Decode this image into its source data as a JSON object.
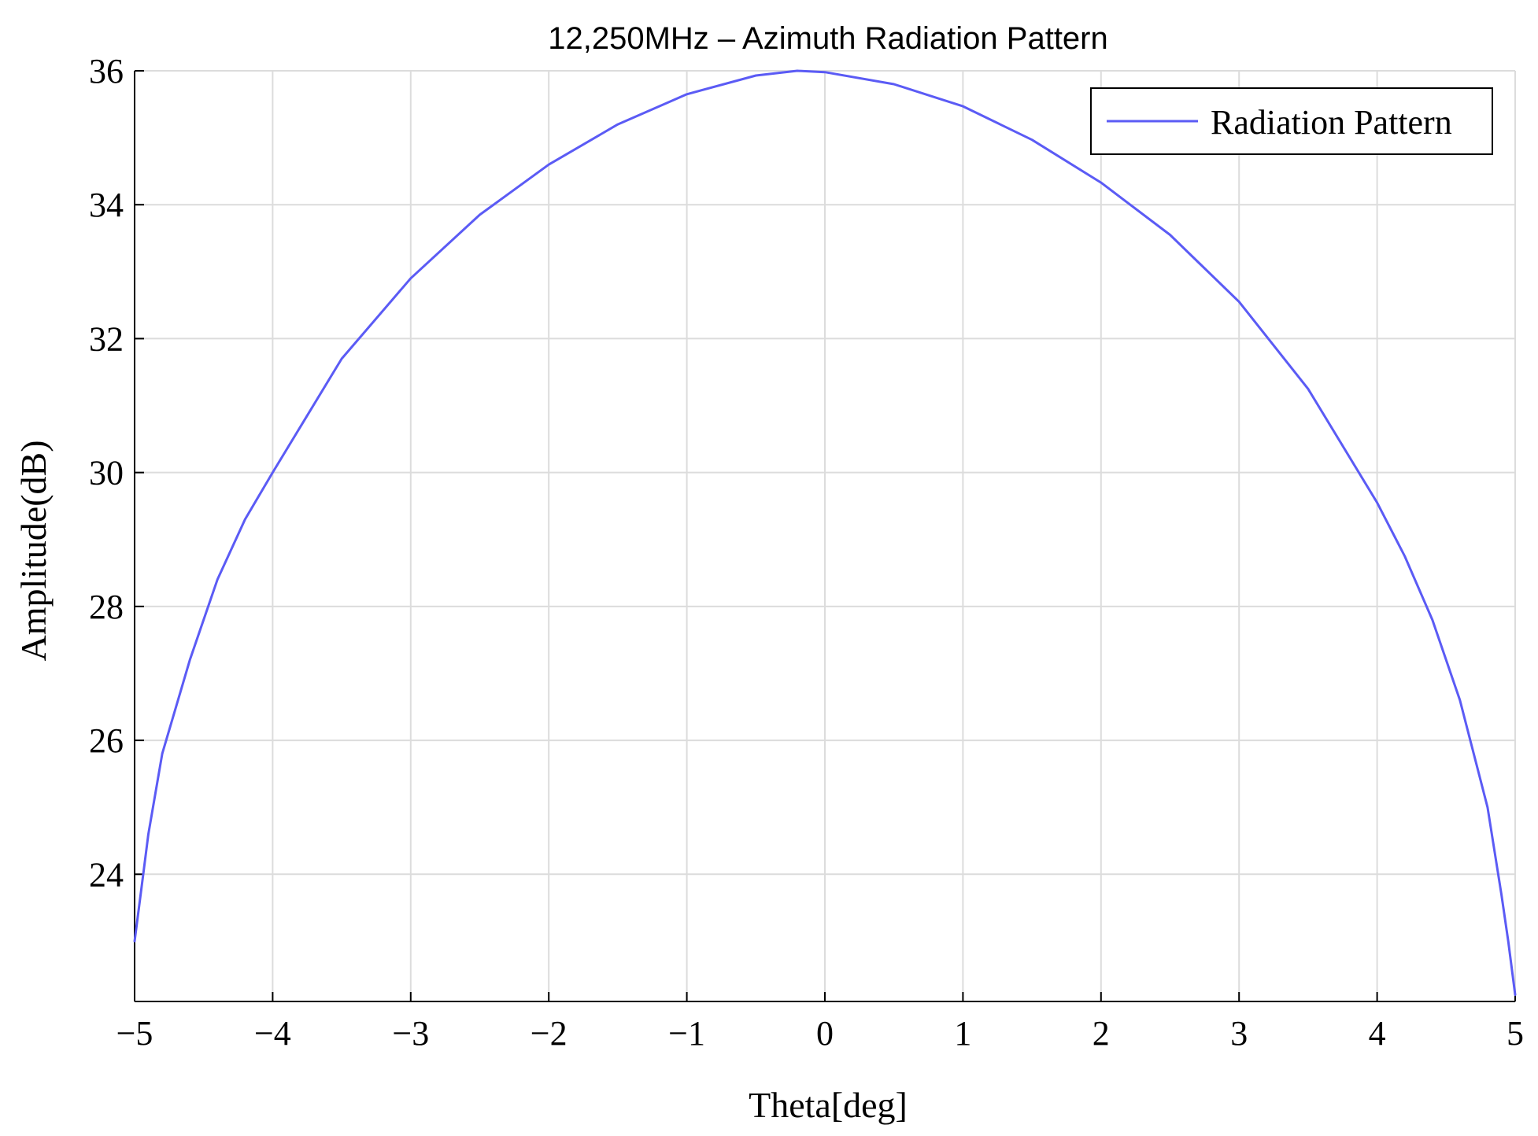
{
  "chart_data": {
    "type": "line",
    "title": "12,250MHz – Azimuth Radiation Pattern",
    "xlabel": "Theta[deg]",
    "ylabel": "Amplitude(dB)",
    "xlim": [
      -5,
      5
    ],
    "ylim": [
      22.1,
      36
    ],
    "xticks": [
      -5,
      -4,
      -3,
      -2,
      -1,
      0,
      1,
      2,
      3,
      4,
      5
    ],
    "xtick_labels": [
      "−5",
      "−4",
      "−3",
      "−2",
      "−1",
      "0",
      "1",
      "2",
      "3",
      "4",
      "5"
    ],
    "yticks": [
      24,
      26,
      28,
      30,
      32,
      34,
      36
    ],
    "ytick_labels": [
      "24",
      "26",
      "28",
      "30",
      "32",
      "34",
      "36"
    ],
    "grid": true,
    "legend": {
      "position": "top-right"
    },
    "colors": {
      "series": "#5b5bf5",
      "grid": "#dcdcdc",
      "axes": "#000000"
    },
    "series": [
      {
        "name": "Radiation Pattern",
        "x": [
          -5.0,
          -4.95,
          -4.9,
          -4.8,
          -4.6,
          -4.4,
          -4.2,
          -4.0,
          -3.5,
          -3.0,
          -2.5,
          -2.0,
          -1.5,
          -1.0,
          -0.5,
          -0.2,
          0.0,
          0.5,
          1.0,
          1.5,
          2.0,
          2.5,
          3.0,
          3.5,
          4.0,
          4.2,
          4.4,
          4.6,
          4.8,
          4.9,
          4.95,
          5.0
        ],
        "y": [
          23.0,
          23.8,
          24.6,
          25.8,
          27.2,
          28.4,
          29.3,
          30.0,
          31.7,
          32.9,
          33.85,
          34.6,
          35.2,
          35.65,
          35.93,
          36.0,
          35.98,
          35.8,
          35.47,
          34.97,
          34.33,
          33.55,
          32.55,
          31.25,
          29.55,
          28.75,
          27.8,
          26.6,
          25.0,
          23.7,
          23.0,
          22.2
        ]
      }
    ]
  }
}
